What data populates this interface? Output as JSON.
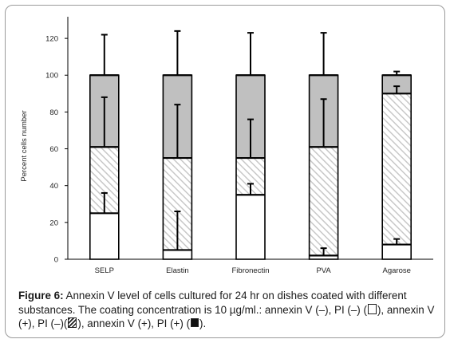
{
  "chart_data": {
    "type": "bar",
    "stacked": true,
    "categories": [
      "SELP",
      "Elastin",
      "Fibronectin",
      "PVA",
      "Agarose"
    ],
    "ylabel": "Percent cells number",
    "xlabel": "",
    "ylim": [
      0,
      130
    ],
    "yticks": [
      0,
      20,
      40,
      60,
      80,
      100,
      120
    ],
    "grid": false,
    "series": [
      {
        "name": "annexin V (−), PI (−)",
        "values": [
          25,
          5,
          35,
          2,
          8
        ],
        "error": [
          11,
          21,
          6,
          4,
          3
        ],
        "fill": "white"
      },
      {
        "name": "annexin V (+), PI (−)",
        "values": [
          36,
          50,
          20,
          59,
          82
        ],
        "error": [
          27,
          29,
          21,
          26,
          4
        ],
        "fill": "hatch"
      },
      {
        "name": "annexin V (+), PI (+)",
        "values": [
          39,
          45,
          45,
          39,
          10
        ],
        "error": [
          22,
          24,
          23,
          23,
          2
        ],
        "fill": "gray"
      }
    ]
  },
  "colors": {
    "gray_fill": "#c0c0c0",
    "hatch_line": "#c8c8c8",
    "bar_edge": "#000000",
    "frame": "#9a9a9a"
  },
  "caption": {
    "label": "Figure 6:",
    "text_1": " Annexin V level of cells cultured for 24 hr on dishes coated with different substances. The coating concentration is 10 µg/ml.: annexin V (–), PI (–) (",
    "text_2": "), annexin V (+), PI (–)(",
    "text_3": "), annexin V (+), PI (+) (",
    "text_4": ")."
  }
}
